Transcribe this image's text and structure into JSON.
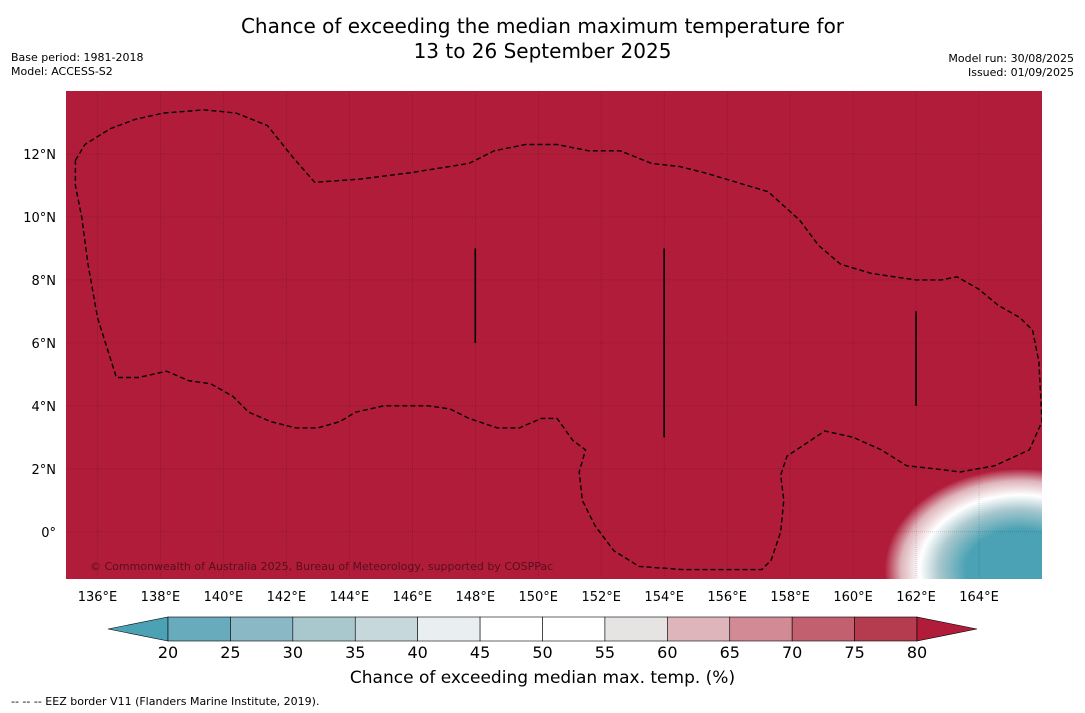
{
  "header": {
    "title_line1": "Chance of exceeding the median maximum temperature for",
    "title_line2": "13 to 26 September 2025",
    "base_period": "Base period: 1981-2018",
    "model": "Model: ACCESS-S2",
    "model_run": "Model run: 30/08/2025",
    "issued": "Issued: 01/09/2025"
  },
  "map": {
    "lon_range": [
      135,
      166
    ],
    "lat_range": [
      -1.5,
      14
    ],
    "lat_ticks": [
      {
        "value": 12,
        "label": "12°N"
      },
      {
        "value": 10,
        "label": "10°N"
      },
      {
        "value": 8,
        "label": "8°N"
      },
      {
        "value": 6,
        "label": "6°N"
      },
      {
        "value": 4,
        "label": "4°N"
      },
      {
        "value": 2,
        "label": "2°N"
      },
      {
        "value": 0,
        "label": "0°"
      }
    ],
    "lon_ticks": [
      {
        "value": 136,
        "label": "136°E"
      },
      {
        "value": 138,
        "label": "138°E"
      },
      {
        "value": 140,
        "label": "140°E"
      },
      {
        "value": 142,
        "label": "142°E"
      },
      {
        "value": 144,
        "label": "144°E"
      },
      {
        "value": 146,
        "label": "146°E"
      },
      {
        "value": 148,
        "label": "148°E"
      },
      {
        "value": 150,
        "label": "150°E"
      },
      {
        "value": 152,
        "label": "152°E"
      },
      {
        "value": 154,
        "label": "154°E"
      },
      {
        "value": 156,
        "label": "156°E"
      },
      {
        "value": 158,
        "label": "158°E"
      },
      {
        "value": 160,
        "label": "160°E"
      },
      {
        "value": 162,
        "label": "162°E"
      },
      {
        "value": 164,
        "label": "164°E"
      }
    ],
    "fill_color": "#b01c3a",
    "gridlines": true,
    "copyright": "© Commonwealth of Australia 2025, Bureau of Meteorology, supported by COSPPac",
    "eez_border": [
      [
        135.3,
        11.8
      ],
      [
        135.6,
        12.3
      ],
      [
        136.4,
        12.8
      ],
      [
        137.2,
        13.1
      ],
      [
        138.1,
        13.3
      ],
      [
        139.4,
        13.4
      ],
      [
        140.4,
        13.3
      ],
      [
        141.4,
        12.9
      ],
      [
        142.2,
        11.9
      ],
      [
        142.9,
        11.1
      ],
      [
        144.3,
        11.2
      ],
      [
        145.9,
        11.4
      ],
      [
        147.8,
        11.7
      ],
      [
        148.6,
        12.1
      ],
      [
        149.6,
        12.3
      ],
      [
        150.6,
        12.3
      ],
      [
        151.6,
        12.1
      ],
      [
        152.6,
        12.1
      ],
      [
        153.6,
        11.7
      ],
      [
        154.5,
        11.6
      ],
      [
        155.3,
        11.4
      ],
      [
        156.3,
        11.1
      ],
      [
        157.3,
        10.8
      ],
      [
        158.3,
        9.9
      ],
      [
        158.9,
        9.1
      ],
      [
        159.6,
        8.5
      ],
      [
        160.6,
        8.2
      ],
      [
        162.0,
        8.0
      ],
      [
        162.8,
        8.0
      ],
      [
        163.3,
        8.1
      ],
      [
        164.0,
        7.7
      ],
      [
        164.6,
        7.2
      ],
      [
        165.3,
        6.8
      ],
      [
        165.7,
        6.4
      ],
      [
        165.9,
        5.4
      ],
      [
        166.0,
        3.5
      ],
      [
        165.6,
        2.6
      ],
      [
        164.5,
        2.1
      ],
      [
        163.4,
        1.9
      ],
      [
        162.6,
        2.0
      ],
      [
        161.7,
        2.1
      ],
      [
        160.9,
        2.6
      ],
      [
        160.0,
        3.0
      ],
      [
        159.1,
        3.2
      ],
      [
        158.5,
        2.8
      ],
      [
        157.9,
        2.4
      ],
      [
        157.7,
        1.8
      ],
      [
        157.8,
        1.0
      ],
      [
        157.7,
        0.0
      ],
      [
        157.4,
        -0.9
      ],
      [
        157.1,
        -1.2
      ],
      [
        156.2,
        -1.2
      ],
      [
        154.6,
        -1.2
      ],
      [
        153.2,
        -1.1
      ],
      [
        152.4,
        -0.6
      ],
      [
        151.8,
        0.2
      ],
      [
        151.4,
        1.0
      ],
      [
        151.3,
        1.9
      ],
      [
        151.5,
        2.6
      ],
      [
        151.1,
        2.9
      ],
      [
        150.6,
        3.6
      ],
      [
        150.1,
        3.6
      ],
      [
        149.4,
        3.3
      ],
      [
        148.7,
        3.3
      ],
      [
        147.8,
        3.6
      ],
      [
        147.2,
        3.9
      ],
      [
        146.5,
        4.0
      ],
      [
        145.8,
        4.0
      ],
      [
        145.1,
        4.0
      ],
      [
        144.2,
        3.8
      ],
      [
        143.7,
        3.5
      ],
      [
        143.0,
        3.3
      ],
      [
        142.3,
        3.3
      ],
      [
        141.5,
        3.5
      ],
      [
        140.8,
        3.8
      ],
      [
        140.3,
        4.3
      ],
      [
        139.6,
        4.7
      ],
      [
        138.9,
        4.8
      ],
      [
        138.2,
        5.1
      ],
      [
        137.3,
        4.9
      ],
      [
        136.6,
        4.9
      ],
      [
        136.0,
        6.8
      ],
      [
        135.7,
        8.5
      ],
      [
        135.5,
        10.0
      ],
      [
        135.3,
        11.0
      ],
      [
        135.3,
        11.8
      ]
    ],
    "black_lines": [
      {
        "lon": 148,
        "lat_from": 6,
        "lat_to": 9
      },
      {
        "lon": 154,
        "lat_from": 3,
        "lat_to": 9
      },
      {
        "lon": 162,
        "lat_from": 4,
        "lat_to": 7
      }
    ],
    "cold_anomaly": {
      "lon_center": 165.3,
      "lat_center": -1.2,
      "lon_radius": 4.3,
      "lat_radius": 3.2
    }
  },
  "colorbar": {
    "title": "Chance of exceeding median max. temp. (%)",
    "ticks": [
      "20",
      "25",
      "30",
      "35",
      "40",
      "45",
      "50",
      "55",
      "60",
      "65",
      "70",
      "75",
      "80"
    ],
    "under_color": "#4ba2b4",
    "over_color": "#b01c3a",
    "colors": [
      "#67abbc",
      "#8ab8c5",
      "#a9c8ce",
      "#c7d8dc",
      "#e9eff1",
      "#ffffff",
      "#ffffff",
      "#e6e3e3",
      "#deb5bb",
      "#d28a94",
      "#c3606f",
      "#b53c4f"
    ]
  },
  "footnote": "--  --  -- EEZ border V11 (Flanders Marine Institute, 2019)."
}
